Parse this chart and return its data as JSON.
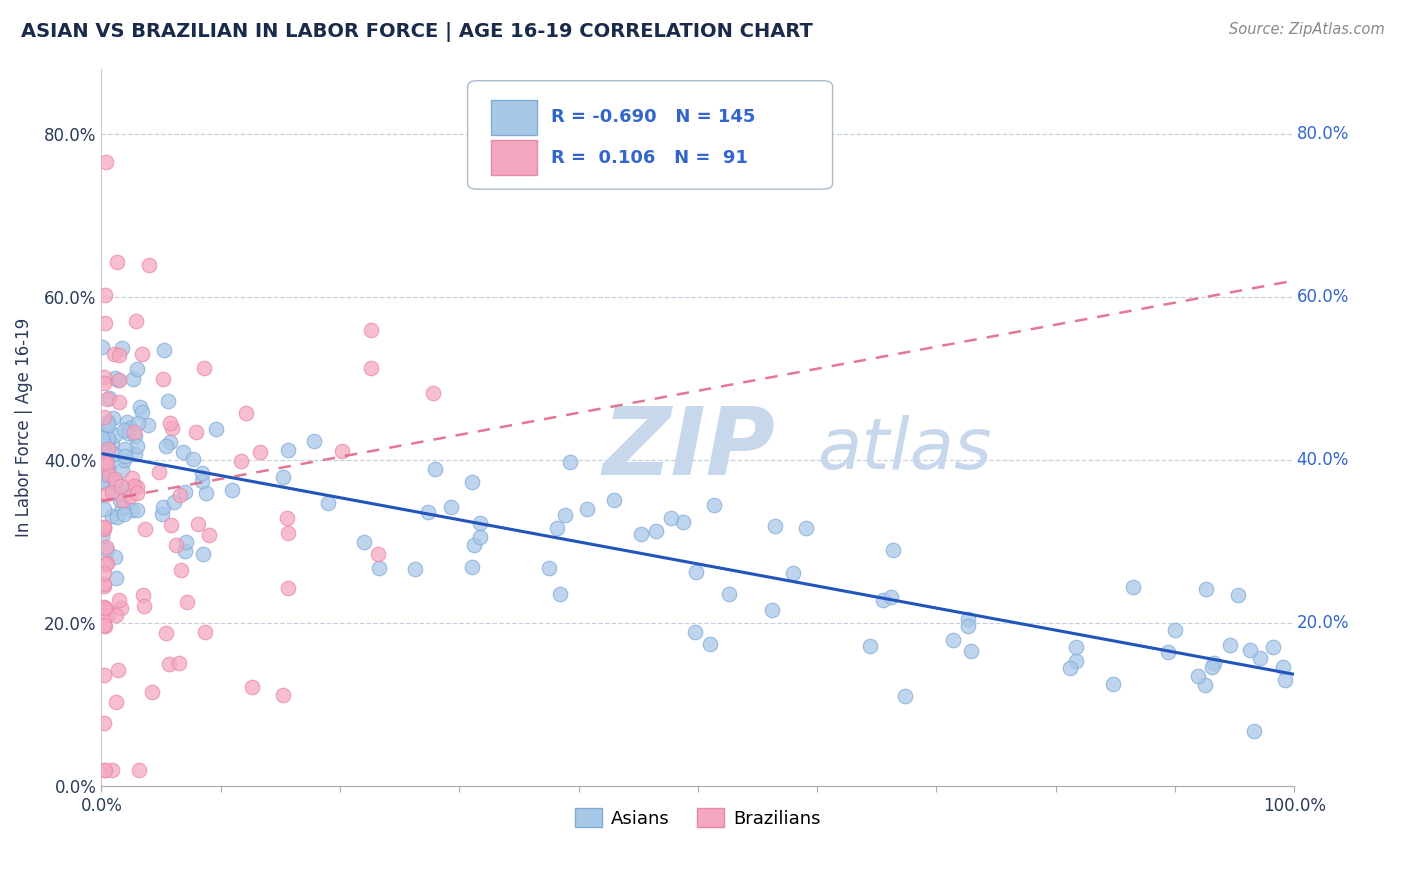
{
  "title": "ASIAN VS BRAZILIAN IN LABOR FORCE | AGE 16-19 CORRELATION CHART",
  "source": "Source: ZipAtlas.com",
  "ylabel": "In Labor Force | Age 16-19",
  "xlim": [
    0,
    1.0
  ],
  "ylim": [
    0,
    0.88
  ],
  "ytick_labels": [
    "0.0%",
    "20.0%",
    "40.0%",
    "60.0%",
    "80.0%"
  ],
  "ytick_vals": [
    0.0,
    0.2,
    0.4,
    0.6,
    0.8
  ],
  "legend_R_asian": "-0.690",
  "legend_N_asian": "145",
  "legend_R_brazil": "0.106",
  "legend_N_brazil": "91",
  "asian_color": "#a8c8e8",
  "brazil_color": "#f4a8c0",
  "trend_asian_color": "#2255bb",
  "trend_brazil_color": "#e06080",
  "grid_color": "#c8d0e0",
  "background_color": "#ffffff",
  "title_color": "#1a2a4a",
  "axis_label_color": "#2a3a5a",
  "source_color": "#888888",
  "legend_text_color": "#3366cc"
}
